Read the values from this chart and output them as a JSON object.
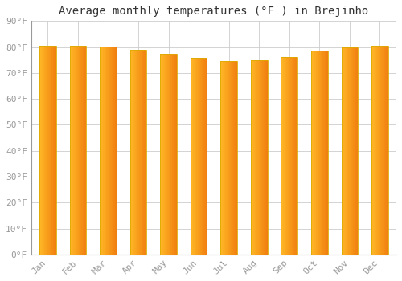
{
  "title": "Average monthly temperatures (°F ) in Brejinho",
  "months": [
    "Jan",
    "Feb",
    "Mar",
    "Apr",
    "May",
    "Jun",
    "Jul",
    "Aug",
    "Sep",
    "Oct",
    "Nov",
    "Dec"
  ],
  "values": [
    80.6,
    80.6,
    80.1,
    79.0,
    77.5,
    75.7,
    74.7,
    74.8,
    76.3,
    78.6,
    79.9,
    80.6
  ],
  "bar_color_left": "#FFB726",
  "bar_color_right": "#F08010",
  "bar_color_center": "#FFA020",
  "ylim": [
    0,
    90
  ],
  "yticks": [
    0,
    10,
    20,
    30,
    40,
    50,
    60,
    70,
    80,
    90
  ],
  "ytick_labels": [
    "0°F",
    "10°F",
    "20°F",
    "30°F",
    "40°F",
    "50°F",
    "60°F",
    "70°F",
    "80°F",
    "90°F"
  ],
  "background_color": "#ffffff",
  "grid_color": "#cccccc",
  "title_fontsize": 10,
  "tick_fontsize": 8,
  "tick_font_color": "#999999",
  "bar_edge_color": "#ddaa00",
  "bar_width": 0.55
}
